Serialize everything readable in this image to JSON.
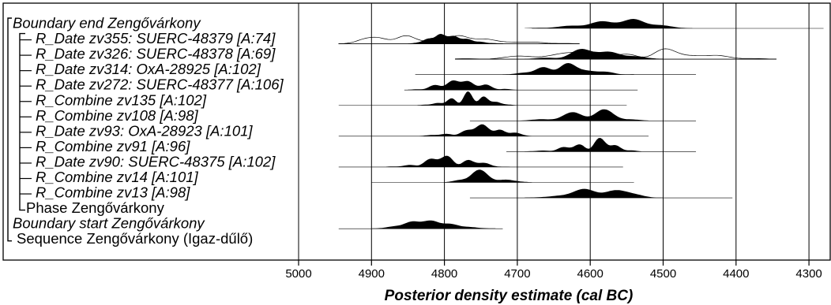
{
  "chart_data": {
    "type": "area",
    "title": "",
    "xlabel": "Posterior density estimate (cal BC)",
    "ylabel": "",
    "x_axis": {
      "min": 5000,
      "max": 4280,
      "reversed": true,
      "ticks": [
        5000,
        4900,
        4800,
        4700,
        4600,
        4500,
        4400,
        4300
      ]
    },
    "grid": "vertical",
    "items": [
      {
        "label": "Boundary end Zengővárkony",
        "kind": "boundary",
        "range": [
          4690,
          4460
        ],
        "peak": 4545,
        "prior_range": [
          4680,
          4280
        ]
      },
      {
        "label": "R_Date zv355: SUERC-48379 [A:74]",
        "kind": "date",
        "range": [
          4850,
          4720
        ],
        "peak": 4805,
        "prior_range": [
          4945,
          4615
        ],
        "prior_peaks": [
          4890,
          4815
        ]
      },
      {
        "label": "R_Date zv326: SUERC-48378 [A:69]",
        "kind": "date",
        "range": [
          4690,
          4500
        ],
        "peak": 4590,
        "prior_range": [
          4785,
          4345
        ],
        "prior_peaks": [
          4590,
          4500
        ]
      },
      {
        "label": "R_Date zv314: OxA-28925 [A:102]",
        "kind": "date",
        "range": [
          4720,
          4540
        ],
        "peak": 4640,
        "prior_range": [
          4840,
          4455
        ]
      },
      {
        "label": "R_Date zv272: SUERC-48377 [A:106]",
        "kind": "date",
        "range": [
          4850,
          4700
        ],
        "peak": 4780,
        "prior_range": [
          4855,
          4535
        ]
      },
      {
        "label": "R_Combine zv135 [A:102]",
        "kind": "combine",
        "range": [
          4840,
          4700
        ],
        "peak": 4760,
        "prior_range": [
          4945,
          4550
        ]
      },
      {
        "label": "R_Combine zv108 [A:98]",
        "kind": "combine",
        "range": [
          4700,
          4520
        ],
        "peak": 4590,
        "prior_range": [
          4765,
          4455
        ]
      },
      {
        "label": "R_Date zv93: OxA-28923 [A:101]",
        "kind": "date",
        "range": [
          4840,
          4680
        ],
        "peak": 4730,
        "prior_range": [
          4945,
          4520
        ]
      },
      {
        "label": "R_Combine zv91 [A:96]",
        "kind": "combine",
        "range": [
          4690,
          4530
        ],
        "peak": 4580,
        "prior_range": [
          4715,
          4455
        ]
      },
      {
        "label": "R_Date zv90: SUERC-48375 [A:102]",
        "kind": "date",
        "range": [
          4880,
          4710
        ],
        "peak": 4790,
        "prior_range": [
          4945,
          4555
        ]
      },
      {
        "label": "R_Combine zv14 [A:101]",
        "kind": "combine",
        "range": [
          4800,
          4680
        ],
        "peak": 4760,
        "prior_range": [
          4900,
          4540
        ]
      },
      {
        "label": "R_Combine zv13 [A:98]",
        "kind": "combine",
        "range": [
          4690,
          4500
        ],
        "peak": 4580,
        "prior_range": [
          4765,
          4405
        ]
      },
      {
        "label": "Phase Zengővárkony",
        "kind": "phase"
      },
      {
        "label": "Boundary start Zengővárkony",
        "kind": "boundary",
        "range": [
          4900,
          4730
        ],
        "peak": 4830,
        "prior_range": [
          4945,
          4720
        ]
      },
      {
        "label": "Sequence Zengővárkony (Igaz-dűlő)",
        "kind": "sequence"
      }
    ]
  }
}
